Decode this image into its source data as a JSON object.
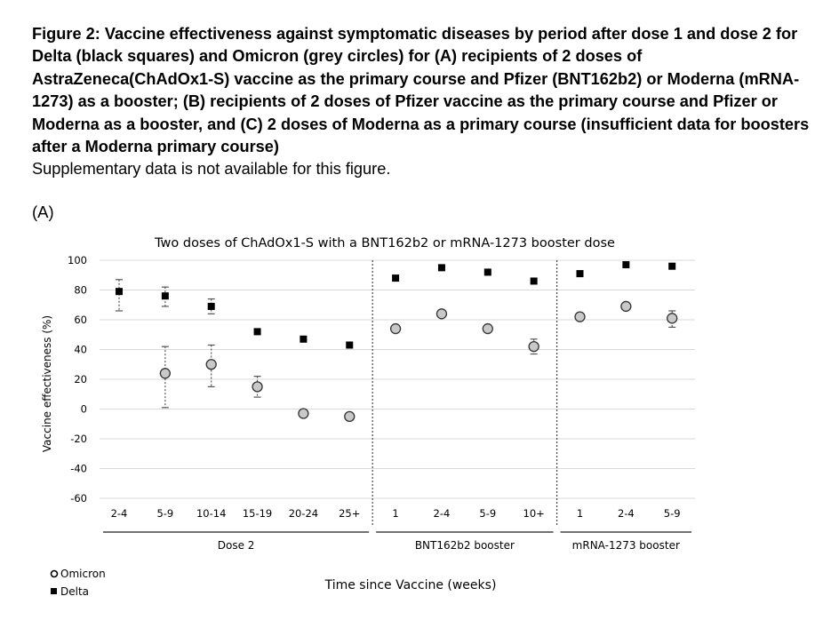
{
  "figure": {
    "title": "Figure 2: Vaccine effectiveness against symptomatic diseases by period after dose 1 and dose 2 for Delta (black squares) and Omicron (grey circles) for (A) recipients of 2 doses of AstraZeneca(ChAdOx1-S) vaccine as the primary course and Pfizer (BNT162b2) or Moderna (mRNA-1273) as a booster; (B) recipients of 2 doses of Pfizer vaccine as the primary course and Pfizer or Moderna as a booster, and (C) 2 doses of Moderna as a primary course (insufficient data for boosters after a Moderna primary course)",
    "note": "Supplementary data is not available for this figure.",
    "panel_label": "(A)"
  },
  "chart_data": {
    "type": "scatter",
    "title": "Two doses of ChAdOx1-S with a BNT162b2 or mRNA-1273 booster dose",
    "xlabel": "Time since Vaccine (weeks)",
    "ylabel": "Vaccine effectiveness (%)",
    "ylim": [
      -60,
      100
    ],
    "yticks": [
      100,
      80,
      60,
      40,
      20,
      0,
      -20,
      -40,
      -60
    ],
    "grid": true,
    "legend_position": "bottom-left",
    "categories": [
      "2-4",
      "5-9",
      "10-14",
      "15-19",
      "20-24",
      "25+",
      "1",
      "2-4",
      "5-9",
      "10+",
      "1",
      "2-4",
      "5-9"
    ],
    "groups": [
      {
        "label": "Dose 2",
        "start": 0,
        "end": 5
      },
      {
        "label": "BNT162b2 booster",
        "start": 6,
        "end": 9
      },
      {
        "label": "mRNA-1273 booster",
        "start": 10,
        "end": 12
      }
    ],
    "series": [
      {
        "name": "Omicron",
        "marker": "circle",
        "color": "#c8c8c8",
        "values": [
          null,
          24,
          30,
          15,
          -3,
          -5,
          54,
          64,
          54,
          42,
          62,
          69,
          61
        ],
        "ci_low": [
          null,
          1,
          15,
          8,
          null,
          null,
          null,
          null,
          null,
          37,
          null,
          null,
          55
        ],
        "ci_high": [
          null,
          42,
          43,
          22,
          null,
          null,
          null,
          null,
          null,
          47,
          null,
          null,
          66
        ]
      },
      {
        "name": "Delta",
        "marker": "square",
        "color": "#000000",
        "values": [
          79,
          76,
          69,
          52,
          47,
          43,
          88,
          95,
          92,
          86,
          91,
          97,
          96
        ],
        "ci_low": [
          66,
          69,
          64,
          null,
          null,
          null,
          null,
          null,
          null,
          null,
          null,
          null,
          null
        ],
        "ci_high": [
          87,
          82,
          74,
          null,
          null,
          null,
          null,
          null,
          null,
          null,
          null,
          null,
          null
        ]
      }
    ]
  }
}
